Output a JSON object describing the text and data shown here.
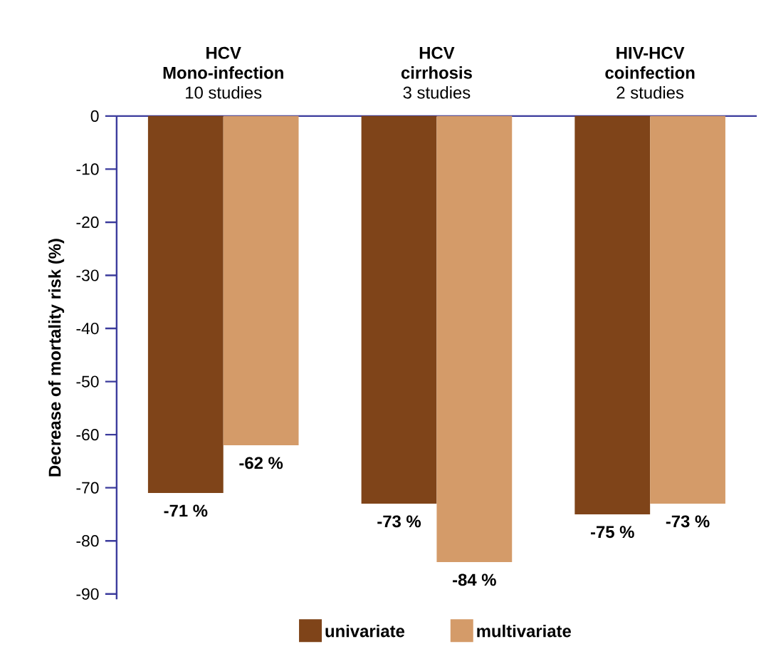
{
  "chart_data": {
    "type": "bar",
    "categories": [
      "**HCV**\n**Mono-infection**\n10 studies",
      "**HCV**\n**cirrhosis**\n3 studies",
      "**HIV-HCV**\n**coinfection**\n2 studies"
    ],
    "ylabel": "Decrease of mortality risk (%)",
    "ylim": [
      -91,
      0
    ],
    "yticks": [
      0,
      -10,
      -20,
      -30,
      -40,
      -50,
      -60,
      -70,
      -80,
      -90
    ],
    "series": [
      {
        "name": "univariate",
        "color": "#7f4419",
        "values": [
          -71,
          -73,
          -75
        ],
        "value_labels": [
          "-71 %",
          "-73 %",
          "-75 %"
        ]
      },
      {
        "name": "multivariate",
        "color": "#d49b69",
        "values": [
          -62,
          -84,
          -73
        ],
        "value_labels": [
          "-62 %",
          "-84 %",
          "-73 %"
        ]
      }
    ],
    "legend": "bottom",
    "grid": false
  }
}
